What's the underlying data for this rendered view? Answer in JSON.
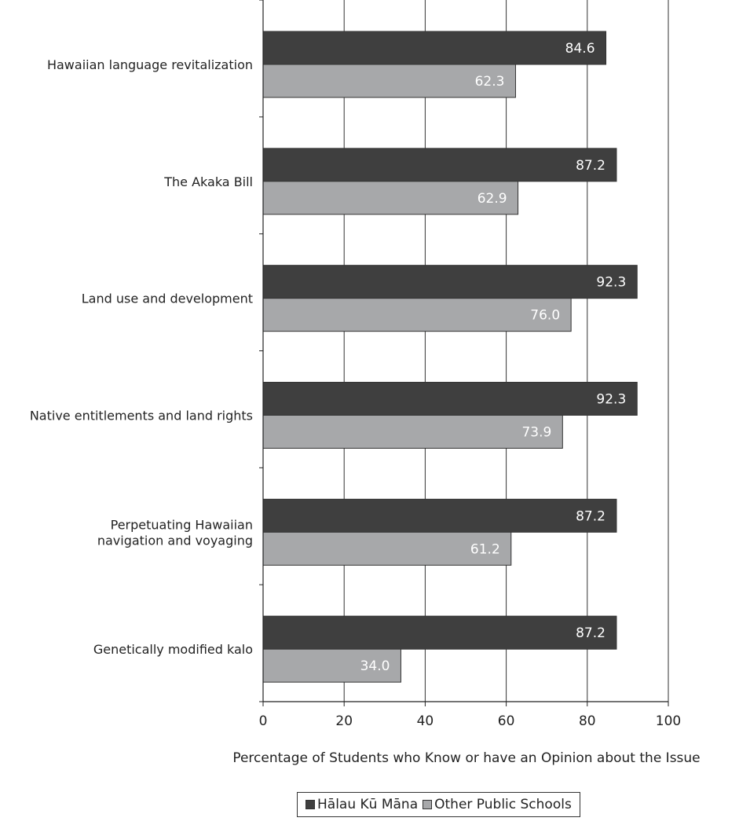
{
  "chart_data": {
    "type": "bar",
    "orientation": "horizontal",
    "categories": [
      [
        "Hawaiian language revitalization"
      ],
      [
        "The Akaka Bill"
      ],
      [
        "Land use and development"
      ],
      [
        "Native entitlements and land rights"
      ],
      [
        "Perpetuating Hawaiian",
        "navigation and voyaging"
      ],
      [
        "Genetically modified kalo"
      ]
    ],
    "series": [
      {
        "name": "Hālau Kū Māna",
        "color": "#3f3f3f",
        "values": [
          84.6,
          87.2,
          92.3,
          92.3,
          87.2,
          87.2
        ],
        "labels": [
          "84.6",
          "87.2",
          "92.3",
          "92.3",
          "87.2",
          "87.2"
        ]
      },
      {
        "name": "Other Public Schools",
        "color": "#a7a8aa",
        "values": [
          62.3,
          62.9,
          76.0,
          73.9,
          61.2,
          34.0
        ],
        "labels": [
          "62.3",
          "62.9",
          "76.0",
          "73.9",
          "61.2",
          "34.0"
        ]
      }
    ],
    "xlabel": "Percentage of Students who Know or have an Opinion about the Issue",
    "xlim": [
      0,
      100
    ],
    "xticks": [
      0,
      20,
      40,
      60,
      80,
      100
    ],
    "grid": true,
    "legend_position": "bottom"
  }
}
